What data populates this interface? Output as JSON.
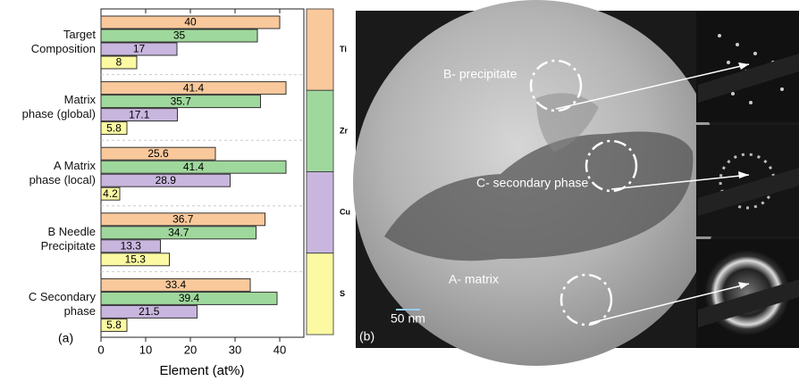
{
  "chart_data": {
    "type": "hbar",
    "panel_label": "(a)",
    "x_label": "Element (at%)",
    "categories": [
      "Target\nComposition",
      "Matrix\nphase (global)",
      "A Matrix\nphase (local)",
      "B Needle\nPrecipitate",
      "C Secondary\nphase"
    ],
    "series": [
      {
        "name": "Ti",
        "color": "#f9c89b",
        "values": [
          40,
          41.4,
          25.6,
          36.7,
          33.4
        ]
      },
      {
        "name": "Zr",
        "color": "#9fd89c",
        "values": [
          35,
          35.7,
          41.4,
          34.7,
          39.4
        ]
      },
      {
        "name": "Cu",
        "color": "#c8b6de",
        "values": [
          17,
          17.1,
          28.9,
          13.3,
          21.5
        ]
      },
      {
        "name": "S",
        "color": "#fbfaa2",
        "values": [
          8,
          5.8,
          4.2,
          15.3,
          5.8
        ]
      }
    ],
    "xlim": [
      0,
      45.4
    ],
    "xticks": [
      0,
      10,
      20,
      30,
      40
    ],
    "grid": true
  },
  "micrograph": {
    "panel_label": "(b)",
    "scale_bar": "50 nm",
    "annotations": [
      "B- precipitate",
      "C- secondary phase",
      "A- matrix"
    ]
  }
}
